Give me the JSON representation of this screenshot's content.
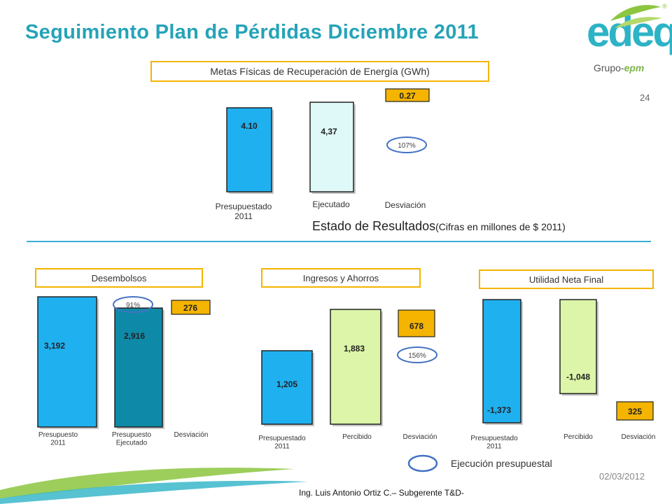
{
  "page": {
    "title": "Seguimiento Plan de Pérdidas Diciembre 2011",
    "page_number": "24",
    "logo_text": "edeq",
    "logo_group": "Grupo-",
    "logo_group_brand": "epm",
    "logo_reg": "®",
    "estado_title": "Estado de Resultados",
    "estado_subtitle": "(Cifras en millones de $ 2011)",
    "legend_note": "Ejecución presupuestal",
    "date": "02/03/2012",
    "author": "Ing. Luis Antonio Ortiz C.– Subgerente T&D-"
  },
  "colors": {
    "title": "#25a3b8",
    "bar_blue": "#1fb0f0",
    "bar_dark_teal": "#0e8aa8",
    "bar_light_cyan": "#dff8f8",
    "bar_light_green": "#dcf5a8",
    "deviation_gold": "#f4b400",
    "box_border": "#f4b400",
    "ellipse": "#4472c4"
  },
  "chart_data": [
    {
      "type": "bar",
      "title": "Metas Físicas de Recuperación de Energía (GWh)",
      "categories": [
        "Presupuestado 2011",
        "Ejecutado",
        "Desviación"
      ],
      "values": [
        4.1,
        4.37,
        0.27
      ],
      "value_labels": [
        "4.10",
        "4,37",
        "0.27"
      ],
      "execution_pct": "107%"
    },
    {
      "type": "bar",
      "title": "Desembolsos",
      "categories": [
        "Presupuesto 2011",
        "Presupuesto Ejecutado",
        "Desviación"
      ],
      "values": [
        3192,
        2916,
        276
      ],
      "value_labels": [
        "3,192",
        "2,916",
        "276"
      ],
      "execution_pct": "91%"
    },
    {
      "type": "bar",
      "title": "Ingresos y Ahorros",
      "categories": [
        "Presupuestado 2011",
        "Percibido",
        "Desviación"
      ],
      "values": [
        1205,
        1883,
        678
      ],
      "value_labels": [
        "1,205",
        "1,883",
        "678"
      ],
      "execution_pct": "156%"
    },
    {
      "type": "bar",
      "title": "Utilidad Neta Final",
      "categories": [
        "Presupuestado 2011",
        "Percibido",
        "Desviación"
      ],
      "values": [
        -1373,
        -1048,
        325
      ],
      "value_labels": [
        "-1,373",
        "-1,048",
        "325"
      ]
    }
  ]
}
